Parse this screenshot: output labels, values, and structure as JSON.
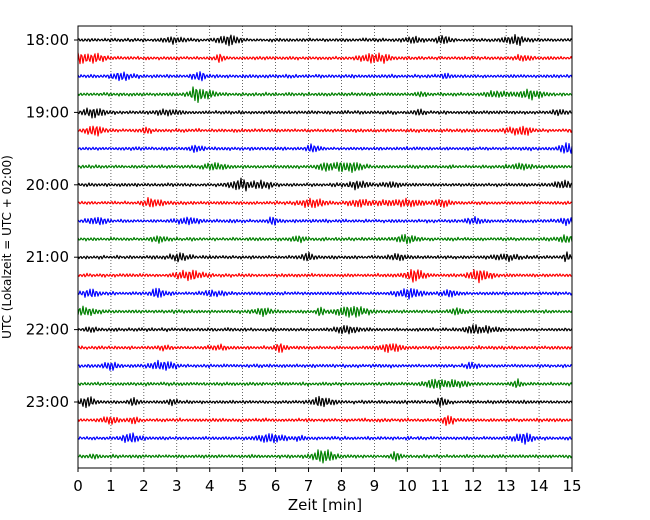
{
  "chart_data": {
    "type": "line",
    "title": "",
    "xlabel": "Zeit  [min]",
    "ylabel": "UTC (Lokalzeit = UTC + 02:00)",
    "xlim": [
      0,
      15
    ],
    "x_ticks": [
      "0",
      "1",
      "2",
      "3",
      "4",
      "5",
      "6",
      "7",
      "8",
      "9",
      "10",
      "11",
      "12",
      "13",
      "14",
      "15"
    ],
    "y_ticks": [
      "18:00",
      "19:00",
      "20:00",
      "21:00",
      "22:00",
      "23:00"
    ],
    "grid": "vertical dotted",
    "trace_interval_minutes": 15,
    "trace_colors": [
      "#000000",
      "#ff0000",
      "#0000ff",
      "#008000"
    ],
    "series": [
      {
        "start_utc": "18:00",
        "color": "#000000"
      },
      {
        "start_utc": "18:15",
        "color": "#ff0000"
      },
      {
        "start_utc": "18:30",
        "color": "#0000ff"
      },
      {
        "start_utc": "18:45",
        "color": "#008000"
      },
      {
        "start_utc": "19:00",
        "color": "#000000"
      },
      {
        "start_utc": "19:15",
        "color": "#ff0000"
      },
      {
        "start_utc": "19:30",
        "color": "#0000ff"
      },
      {
        "start_utc": "19:45",
        "color": "#008000"
      },
      {
        "start_utc": "20:00",
        "color": "#000000"
      },
      {
        "start_utc": "20:15",
        "color": "#ff0000"
      },
      {
        "start_utc": "20:30",
        "color": "#0000ff"
      },
      {
        "start_utc": "20:45",
        "color": "#008000"
      },
      {
        "start_utc": "21:00",
        "color": "#000000"
      },
      {
        "start_utc": "21:15",
        "color": "#ff0000"
      },
      {
        "start_utc": "21:30",
        "color": "#0000ff"
      },
      {
        "start_utc": "21:45",
        "color": "#008000"
      },
      {
        "start_utc": "22:00",
        "color": "#000000"
      },
      {
        "start_utc": "22:15",
        "color": "#ff0000"
      },
      {
        "start_utc": "22:30",
        "color": "#0000ff"
      },
      {
        "start_utc": "22:45",
        "color": "#008000"
      },
      {
        "start_utc": "23:00",
        "color": "#000000"
      },
      {
        "start_utc": "23:15",
        "color": "#ff0000"
      },
      {
        "start_utc": "23:30",
        "color": "#0000ff"
      },
      {
        "start_utc": "23:45",
        "color": "#008000"
      }
    ]
  }
}
